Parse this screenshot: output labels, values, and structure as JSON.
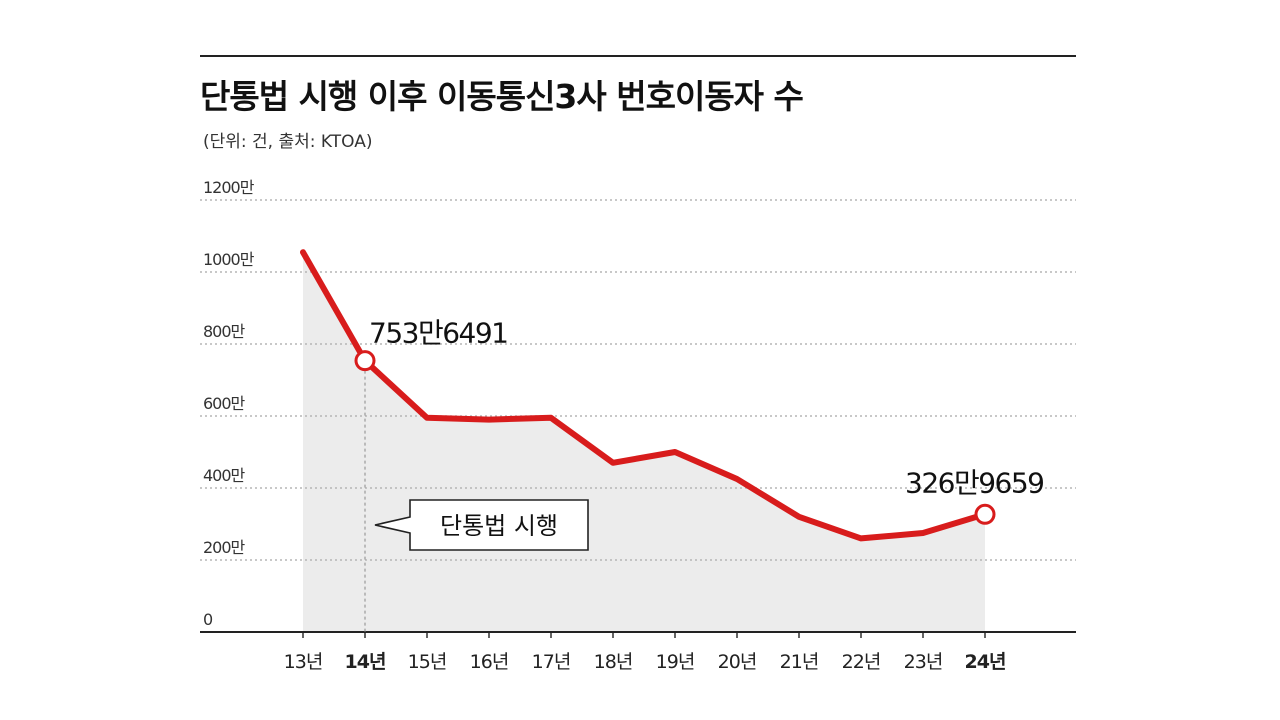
{
  "chart_data": {
    "type": "area",
    "title": "단통법 시행 이후 이동통신3사 번호이동자 수",
    "subtitle": "(단위: 건, 출처: KTOA)",
    "categories": [
      "13년",
      "14년",
      "15년",
      "16년",
      "17년",
      "18년",
      "19년",
      "20년",
      "21년",
      "22년",
      "23년",
      "24년"
    ],
    "bold_categories": [
      "14년",
      "24년"
    ],
    "values": [
      10550000,
      7536491,
      5950000,
      5900000,
      5950000,
      4700000,
      5000000,
      4250000,
      3200000,
      2600000,
      2750000,
      3269659
    ],
    "y_ticks": [
      {
        "value": 0,
        "label": "0"
      },
      {
        "value": 2000000,
        "label": "200만"
      },
      {
        "value": 4000000,
        "label": "400만"
      },
      {
        "value": 6000000,
        "label": "600만"
      },
      {
        "value": 8000000,
        "label": "800만"
      },
      {
        "value": 10000000,
        "label": "1000만"
      },
      {
        "value": 12000000,
        "label": "1200만"
      }
    ],
    "ylim": [
      0,
      12000000
    ],
    "grid": true,
    "line_color": "#d81c1c",
    "fill_color": "#ececec",
    "data_labels": [
      {
        "index": 1,
        "text": "753만6491"
      },
      {
        "index": 11,
        "text": "326만9659"
      }
    ],
    "annotation": {
      "index": 1,
      "text": "단통법 시행"
    }
  }
}
